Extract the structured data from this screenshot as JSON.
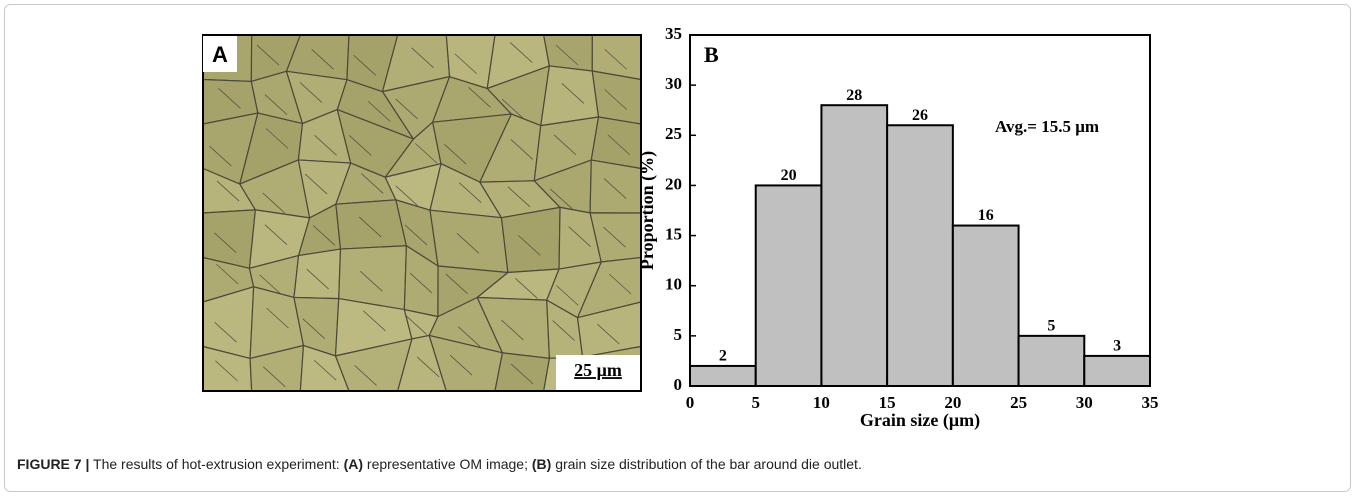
{
  "panel_a": {
    "label": "A",
    "scale_bar": "25 μm"
  },
  "chart_data": {
    "type": "histogram",
    "panel_label": "B",
    "bins": [
      0,
      5,
      10,
      15,
      20,
      25,
      30,
      35
    ],
    "values": [
      2,
      20,
      28,
      26,
      16,
      5,
      3
    ],
    "color": "#c0c0c0",
    "xlabel": "Grain size (μm)",
    "ylabel": "Proportion (%)",
    "annotation": "Avg.= 15.5 μm",
    "xlim": [
      0,
      35
    ],
    "xticks": [
      0,
      5,
      10,
      15,
      20,
      25,
      30,
      35
    ],
    "ylim": [
      0,
      35
    ],
    "yticks": [
      0,
      5,
      10,
      15,
      20,
      25,
      30,
      35
    ]
  },
  "caption": [
    {
      "text": "FIGURE 7 |",
      "bold": true
    },
    {
      "text": " The results of hot-extrusion experiment: ",
      "bold": false
    },
    {
      "text": "(A)",
      "bold": true
    },
    {
      "text": " representative OM image; ",
      "bold": false
    },
    {
      "text": "(B)",
      "bold": true
    },
    {
      "text": " grain size distribution of the bar around die outlet.",
      "bold": false
    }
  ]
}
